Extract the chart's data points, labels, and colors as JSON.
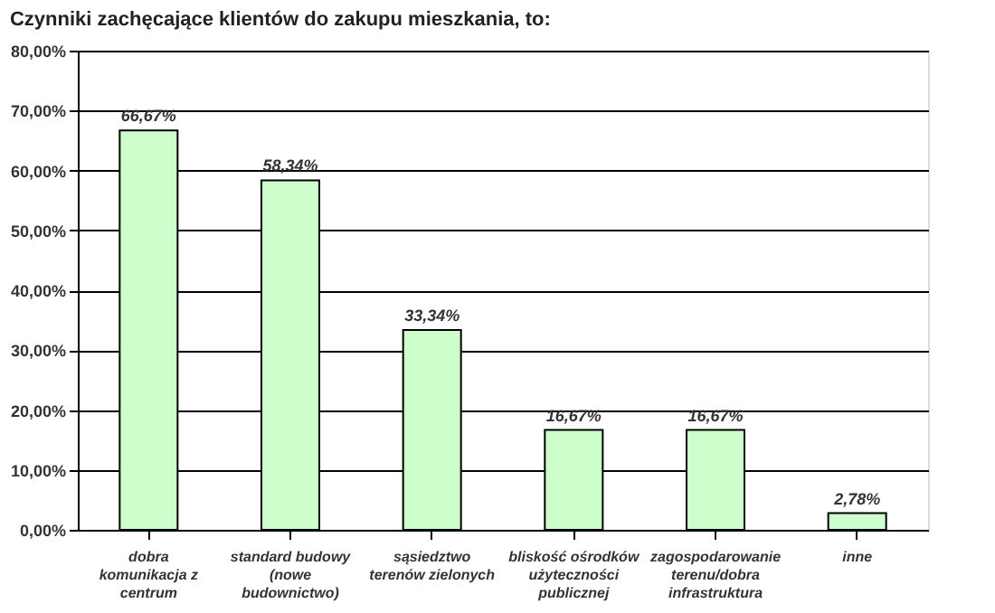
{
  "chart_data": {
    "type": "bar",
    "title": "Czynniki zachęcające klientów do zakupu mieszkania, to:",
    "categories": [
      "dobra\nkomunikacja z\ncentrum",
      "standard budowy\n(nowe\nbudownictwo)",
      "sąsiedztwo\nterenów zielonych",
      "bliskość ośrodków\nużyteczności\npublicznej",
      "zagospodarowanie\nterenu/dobra\ninfrastruktura",
      "inne"
    ],
    "values": [
      66.67,
      58.34,
      33.34,
      16.67,
      16.67,
      2.78
    ],
    "value_labels": [
      "66,67%",
      "58,34%",
      "33,34%",
      "16,67%",
      "16,67%",
      "2,78%"
    ],
    "color": "#ccffcc",
    "ylim": [
      0,
      80
    ],
    "yticks": [
      {
        "value": 0,
        "label": "0,00%"
      },
      {
        "value": 10,
        "label": "10,00%"
      },
      {
        "value": 20,
        "label": "20,00%"
      },
      {
        "value": 30,
        "label": "30,00%"
      },
      {
        "value": 40,
        "label": "40,00%"
      },
      {
        "value": 50,
        "label": "50,00%"
      },
      {
        "value": 60,
        "label": "60,00%"
      },
      {
        "value": 70,
        "label": "70,00%"
      },
      {
        "value": 80,
        "label": "80,00%"
      }
    ],
    "grid": "y"
  }
}
